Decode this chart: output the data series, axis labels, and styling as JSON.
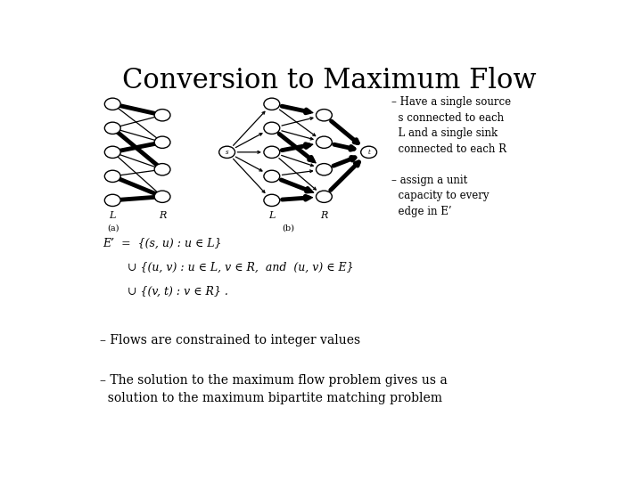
{
  "title": "Conversion to Maximum Flow",
  "title_fontsize": 22,
  "bg_color": "#ffffff",
  "bullet1": "– Have a single source\n  s connected to each\n  L and a single sink\n  connected to each R",
  "bullet2": "– assign a unit\n  capacity to every\n  edge in E’",
  "bottom1": "– Flows are constrained to integer values",
  "bottom2": "– The solution to the maximum flow problem gives us a\n  solution to the maximum bipartite matching problem",
  "formula_line1": "E’  =  {(s, u) : u ∈ L}",
  "formula_line2": "       ∪ {(u, v) : u ∈ L, v ∈ R,  and  (u, v) ∈ E}",
  "formula_line3": "       ∪ {(v, t) : v ∈ R} .",
  "label_a": "(a)",
  "label_b": "(b)",
  "label_L1": "L",
  "label_R1": "R",
  "label_L2": "L",
  "label_R2": "R",
  "node_color": "#ffffff",
  "node_edge_color": "#000000",
  "thick_edge_lw": 3.5,
  "thin_edge_lw": 0.9,
  "node_r": 0.016
}
